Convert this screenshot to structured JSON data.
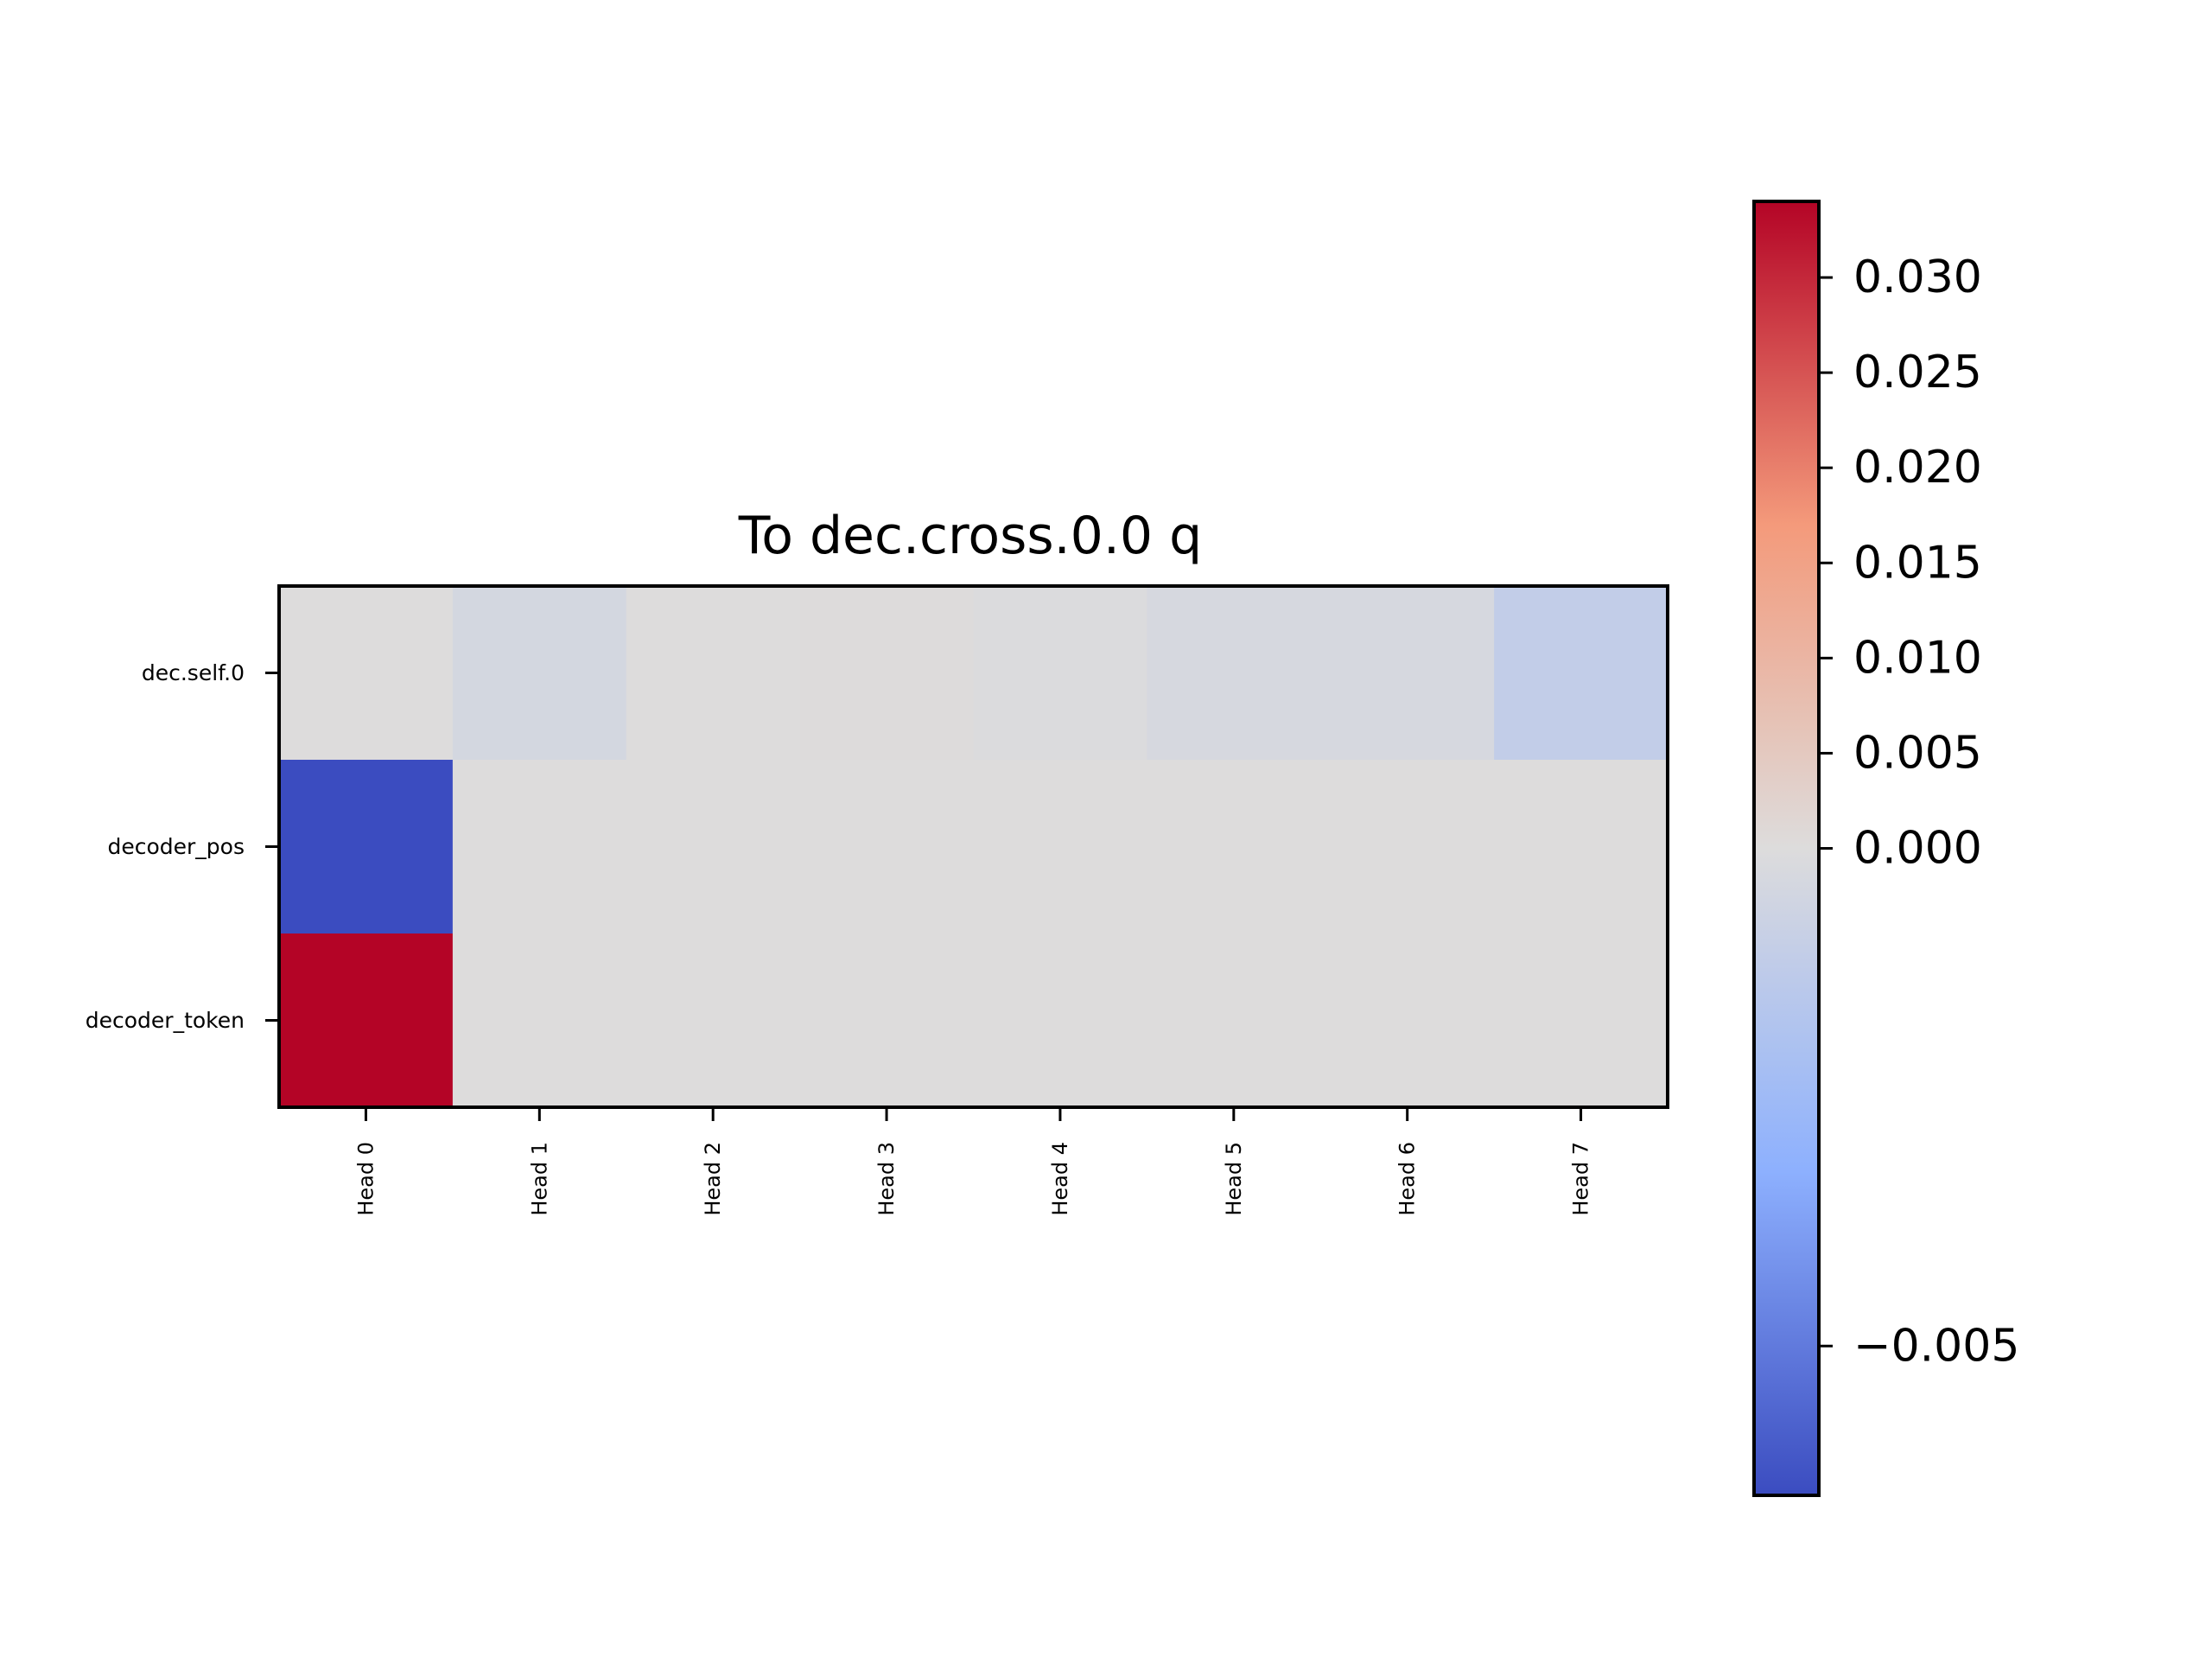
{
  "chart_data": {
    "type": "heatmap",
    "title": "To dec.cross.0.0 q",
    "xlabel": "",
    "ylabel": "",
    "x_categories": [
      "Head 0",
      "Head 1",
      "Head 2",
      "Head 3",
      "Head 4",
      "Head 5",
      "Head 6",
      "Head 7"
    ],
    "y_categories": [
      "dec.self.0",
      "decoder_pos",
      "decoder_token"
    ],
    "values": [
      [
        0.0,
        -0.0004,
        0.0,
        0.0002,
        -0.0001,
        -0.0003,
        -0.0003,
        -0.0011
      ],
      [
        -0.0065,
        0.0,
        0.0,
        0.0,
        0.0,
        0.0,
        0.0,
        0.0
      ],
      [
        0.034,
        0.0,
        0.0,
        0.0,
        0.0,
        0.0,
        0.0,
        0.0
      ]
    ],
    "colormap": "coolwarm",
    "colorbar": {
      "vmin": -0.0065,
      "vcenter": 0.0,
      "vmax": 0.034,
      "ticks": [
        0.03,
        0.025,
        0.02,
        0.015,
        0.01,
        0.005,
        0.0,
        -0.005
      ],
      "tick_labels": [
        "0.030",
        "0.025",
        "0.020",
        "0.015",
        "0.010",
        "0.005",
        "0.000",
        "−0.005"
      ],
      "colors": {
        "low": "#3b4cc0",
        "mid_low": "#8db0fe",
        "center": "#dddcdc",
        "mid_high": "#f49a7b",
        "high": "#b40426"
      }
    },
    "grid": false,
    "legend": "colorbar-right"
  }
}
